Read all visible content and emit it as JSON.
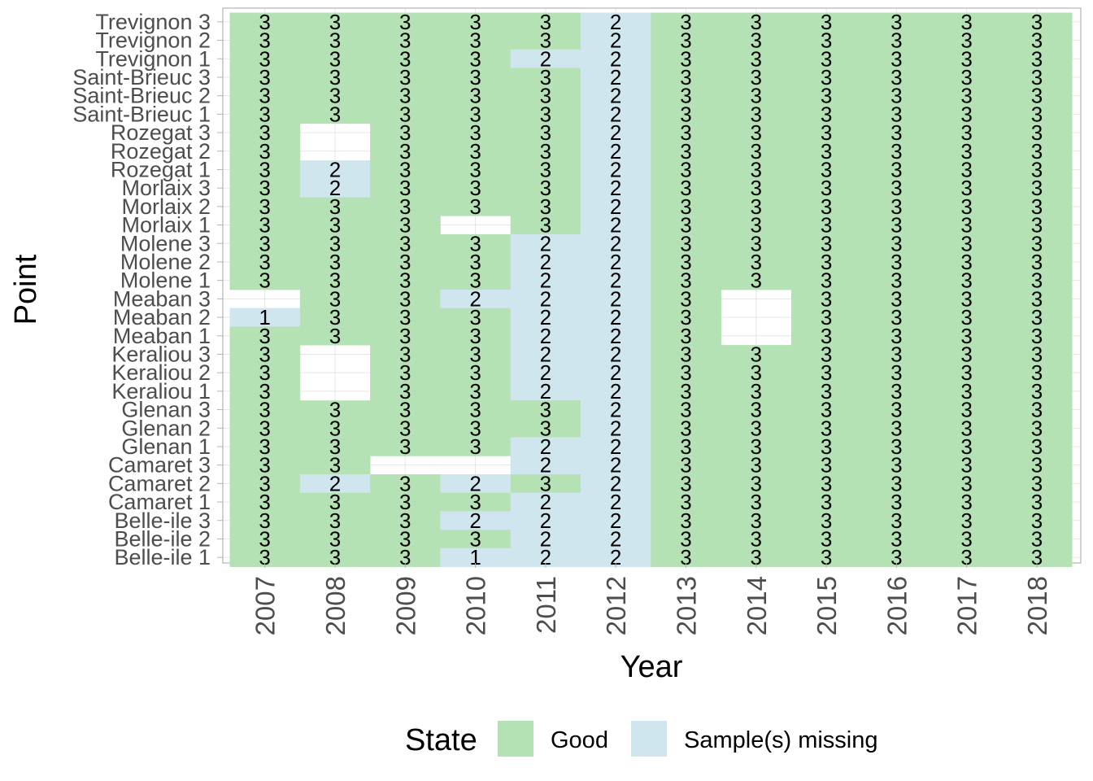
{
  "chart_data": {
    "type": "heatmap",
    "xlabel": "Year",
    "ylabel": "Point",
    "x_categories": [
      "2007",
      "2008",
      "2009",
      "2010",
      "2011",
      "2012",
      "2013",
      "2014",
      "2015",
      "2016",
      "2017",
      "2018"
    ],
    "y_categories": [
      "Trevignon 3",
      "Trevignon 2",
      "Trevignon 1",
      "Saint-Brieuc 3",
      "Saint-Brieuc 2",
      "Saint-Brieuc 1",
      "Rozegat 3",
      "Rozegat 2",
      "Rozegat 1",
      "Morlaix 3",
      "Morlaix 2",
      "Morlaix 1",
      "Molene 3",
      "Molene 2",
      "Molene 1",
      "Meaban 3",
      "Meaban 2",
      "Meaban 1",
      "Keraliou 3",
      "Keraliou 2",
      "Keraliou 1",
      "Glenan 3",
      "Glenan 2",
      "Glenan 1",
      "Camaret 3",
      "Camaret 2",
      "Camaret 1",
      "Belle-ile 3",
      "Belle-ile 2",
      "Belle-ile 1"
    ],
    "states": [
      "Good",
      "Sample(s) missing"
    ],
    "state_colors": {
      "Good": "#b5e2b5",
      "Sample(s) missing": "#d0e6ee"
    },
    "cells": [
      [
        "G3",
        "G3",
        "G3",
        "G3",
        "G3",
        "M2",
        "G3",
        "G3",
        "G3",
        "G3",
        "G3",
        "G3"
      ],
      [
        "G3",
        "G3",
        "G3",
        "G3",
        "G3",
        "M2",
        "G3",
        "G3",
        "G3",
        "G3",
        "G3",
        "G3"
      ],
      [
        "G3",
        "G3",
        "G3",
        "G3",
        "M2",
        "M2",
        "G3",
        "G3",
        "G3",
        "G3",
        "G3",
        "G3"
      ],
      [
        "G3",
        "G3",
        "G3",
        "G3",
        "G3",
        "M2",
        "G3",
        "G3",
        "G3",
        "G3",
        "G3",
        "G3"
      ],
      [
        "G3",
        "G3",
        "G3",
        "G3",
        "G3",
        "M2",
        "G3",
        "G3",
        "G3",
        "G3",
        "G3",
        "G3"
      ],
      [
        "G3",
        "G3",
        "G3",
        "G3",
        "G3",
        "M2",
        "G3",
        "G3",
        "G3",
        "G3",
        "G3",
        "G3"
      ],
      [
        "G3",
        "",
        "G3",
        "G3",
        "G3",
        "M2",
        "G3",
        "G3",
        "G3",
        "G3",
        "G3",
        "G3"
      ],
      [
        "G3",
        "",
        "G3",
        "G3",
        "G3",
        "M2",
        "G3",
        "G3",
        "G3",
        "G3",
        "G3",
        "G3"
      ],
      [
        "G3",
        "M2",
        "G3",
        "G3",
        "G3",
        "M2",
        "G3",
        "G3",
        "G3",
        "G3",
        "G3",
        "G3"
      ],
      [
        "G3",
        "M2",
        "G3",
        "G3",
        "G3",
        "M2",
        "G3",
        "G3",
        "G3",
        "G3",
        "G3",
        "G3"
      ],
      [
        "G3",
        "G3",
        "G3",
        "G3",
        "G3",
        "M2",
        "G3",
        "G3",
        "G3",
        "G3",
        "G3",
        "G3"
      ],
      [
        "G3",
        "G3",
        "G3",
        "",
        "G3",
        "M2",
        "G3",
        "G3",
        "G3",
        "G3",
        "G3",
        "G3"
      ],
      [
        "G3",
        "G3",
        "G3",
        "G3",
        "M2",
        "M2",
        "G3",
        "G3",
        "G3",
        "G3",
        "G3",
        "G3"
      ],
      [
        "G3",
        "G3",
        "G3",
        "G3",
        "M2",
        "M2",
        "G3",
        "G3",
        "G3",
        "G3",
        "G3",
        "G3"
      ],
      [
        "G3",
        "G3",
        "G3",
        "G3",
        "M2",
        "M2",
        "G3",
        "G3",
        "G3",
        "G3",
        "G3",
        "G3"
      ],
      [
        "",
        "G3",
        "G3",
        "M2",
        "M2",
        "M2",
        "G3",
        "",
        "G3",
        "G3",
        "G3",
        "G3"
      ],
      [
        "M1",
        "G3",
        "G3",
        "G3",
        "M2",
        "M2",
        "G3",
        "",
        "G3",
        "G3",
        "G3",
        "G3"
      ],
      [
        "G3",
        "G3",
        "G3",
        "G3",
        "M2",
        "M2",
        "G3",
        "",
        "G3",
        "G3",
        "G3",
        "G3"
      ],
      [
        "G3",
        "",
        "G3",
        "G3",
        "M2",
        "M2",
        "G3",
        "G3",
        "G3",
        "G3",
        "G3",
        "G3"
      ],
      [
        "G3",
        "",
        "G3",
        "G3",
        "M2",
        "M2",
        "G3",
        "G3",
        "G3",
        "G3",
        "G3",
        "G3"
      ],
      [
        "G3",
        "",
        "G3",
        "G3",
        "M2",
        "M2",
        "G3",
        "G3",
        "G3",
        "G3",
        "G3",
        "G3"
      ],
      [
        "G3",
        "G3",
        "G3",
        "G3",
        "G3",
        "M2",
        "G3",
        "G3",
        "G3",
        "G3",
        "G3",
        "G3"
      ],
      [
        "G3",
        "G3",
        "G3",
        "G3",
        "G3",
        "M2",
        "G3",
        "G3",
        "G3",
        "G3",
        "G3",
        "G3"
      ],
      [
        "G3",
        "G3",
        "G3",
        "G3",
        "M2",
        "M2",
        "G3",
        "G3",
        "G3",
        "G3",
        "G3",
        "G3"
      ],
      [
        "G3",
        "G3",
        "",
        "",
        "M2",
        "M2",
        "G3",
        "G3",
        "G3",
        "G3",
        "G3",
        "G3"
      ],
      [
        "G3",
        "M2",
        "G3",
        "M2",
        "G3",
        "M2",
        "G3",
        "G3",
        "G3",
        "G3",
        "G3",
        "G3"
      ],
      [
        "G3",
        "G3",
        "G3",
        "G3",
        "M2",
        "M2",
        "G3",
        "G3",
        "G3",
        "G3",
        "G3",
        "G3"
      ],
      [
        "G3",
        "G3",
        "G3",
        "M2",
        "M2",
        "M2",
        "G3",
        "G3",
        "G3",
        "G3",
        "G3",
        "G3"
      ],
      [
        "G3",
        "G3",
        "G3",
        "G3",
        "M2",
        "M2",
        "G3",
        "G3",
        "G3",
        "G3",
        "G3",
        "G3"
      ],
      [
        "G3",
        "G3",
        "G3",
        "M1",
        "M2",
        "M2",
        "G3",
        "G3",
        "G3",
        "G3",
        "G3",
        "G3"
      ]
    ],
    "cell_code_note": "G = Good, M = Sample(s) missing, digit = count label; empty = no data",
    "grid": true,
    "legend_position": "bottom"
  },
  "legend": {
    "title": "State",
    "items": [
      {
        "label": "Good",
        "color": "#b5e2b5"
      },
      {
        "label": "Sample(s) missing",
        "color": "#d0e6ee"
      }
    ]
  }
}
